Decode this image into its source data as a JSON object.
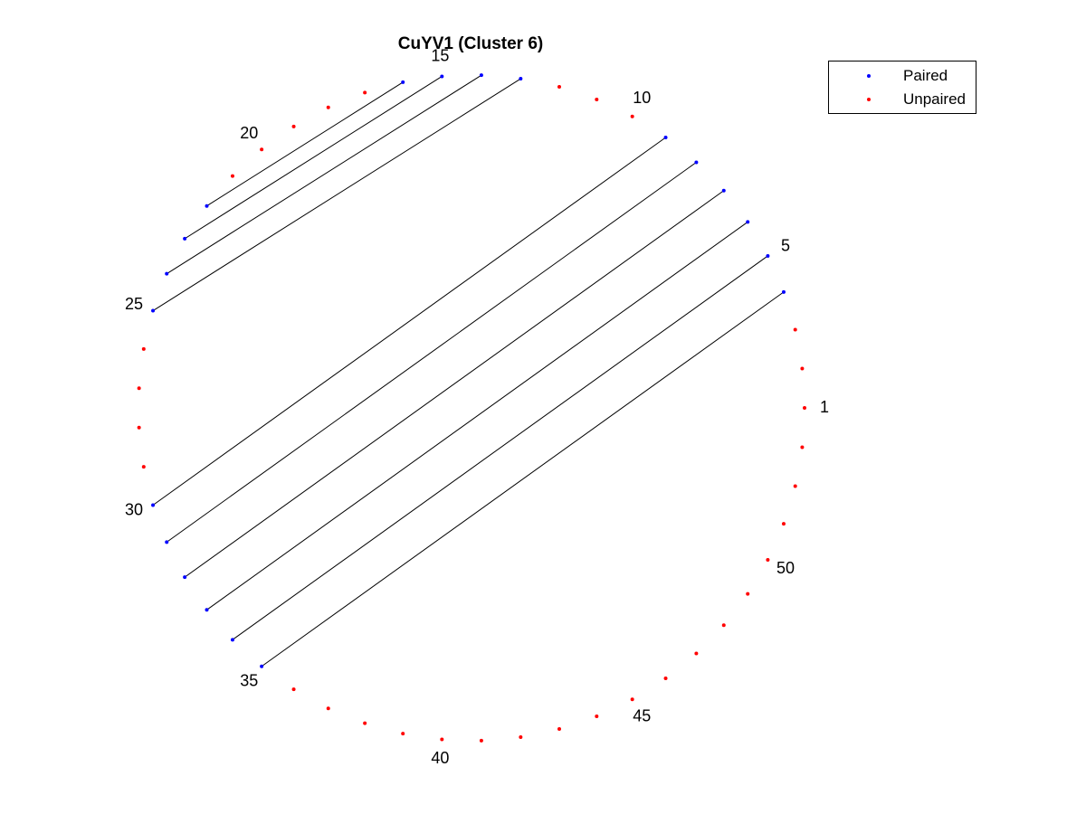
{
  "chart_data": {
    "type": "scatter",
    "subtype": "arc-circle-diagram",
    "title": "CuYV1 (Cluster 6)",
    "n_positions": 53,
    "index_labels": [
      1,
      5,
      10,
      15,
      20,
      25,
      30,
      35,
      40,
      45,
      50
    ],
    "series": [
      {
        "name": "Paired",
        "color": "#0000ff",
        "positions": [
          4,
          5,
          6,
          7,
          8,
          9,
          13,
          14,
          15,
          16,
          22,
          23,
          24,
          25,
          30,
          31,
          32,
          33,
          34,
          35
        ]
      },
      {
        "name": "Unpaired",
        "color": "#ff0000",
        "positions": [
          1,
          2,
          3,
          10,
          11,
          12,
          17,
          18,
          19,
          20,
          21,
          26,
          27,
          28,
          29,
          36,
          37,
          38,
          39,
          40,
          41,
          42,
          43,
          44,
          45,
          46,
          47,
          48,
          49,
          50,
          51,
          52,
          53
        ]
      }
    ],
    "pairs": [
      [
        4,
        35
      ],
      [
        5,
        34
      ],
      [
        6,
        33
      ],
      [
        7,
        32
      ],
      [
        8,
        31
      ],
      [
        9,
        30
      ],
      [
        13,
        25
      ],
      [
        14,
        24
      ],
      [
        15,
        23
      ],
      [
        16,
        22
      ]
    ],
    "link_color": "#000000",
    "legend_position": "top-right",
    "grid": false
  }
}
